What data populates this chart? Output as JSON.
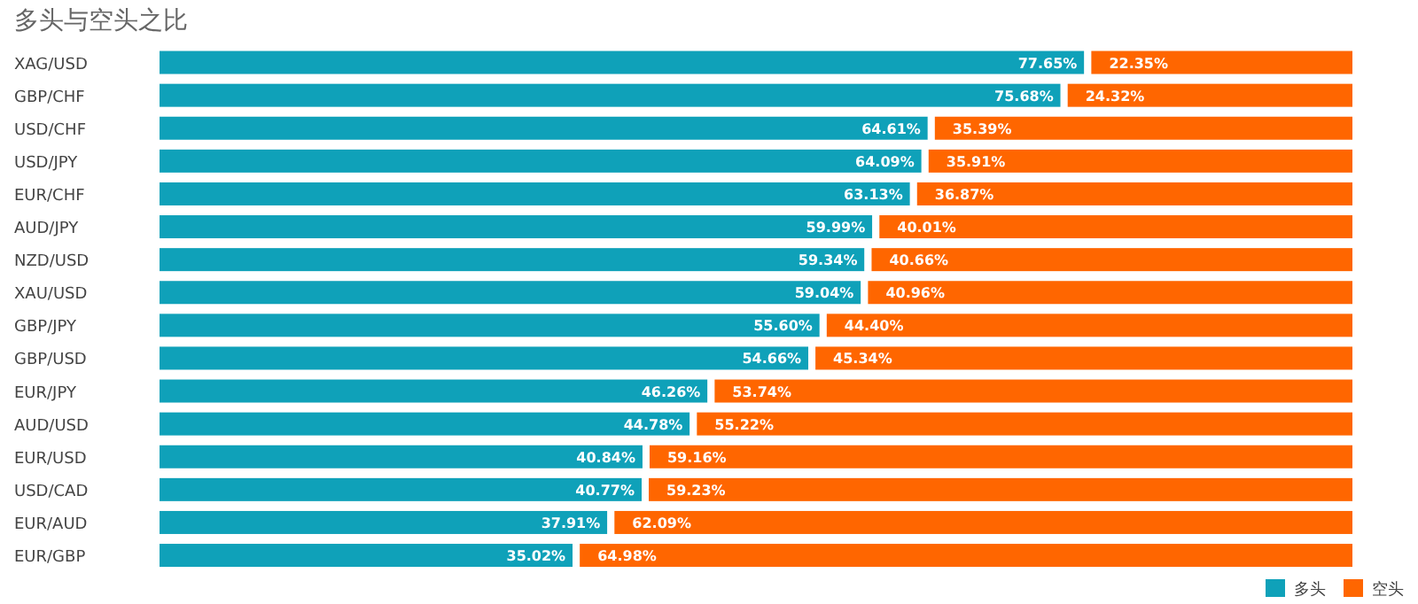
{
  "chart_data": {
    "type": "bar",
    "title": "多头与空头之比",
    "orientation": "horizontal",
    "stacked": true,
    "legend": "bottom right",
    "categories": [
      "XAG/USD",
      "GBP/CHF",
      "USD/CHF",
      "USD/JPY",
      "EUR/CHF",
      "AUD/JPY",
      "NZD/USD",
      "XAU/USD",
      "GBP/JPY",
      "GBP/USD",
      "EUR/JPY",
      "AUD/USD",
      "EUR/USD",
      "USD/CAD",
      "EUR/AUD",
      "EUR/GBP"
    ],
    "series": [
      {
        "name": "多头",
        "color": "#0fa1b9",
        "values": [
          77.65,
          75.68,
          64.61,
          64.09,
          63.13,
          59.99,
          59.34,
          59.04,
          55.6,
          54.66,
          46.26,
          44.78,
          40.84,
          40.77,
          37.91,
          35.02
        ],
        "value_labels": [
          "77.65%",
          "75.68%",
          "64.61%",
          "64.09%",
          "63.13%",
          "59.99%",
          "59.34%",
          "59.04%",
          "55.60%",
          "54.66%",
          "46.26%",
          "44.78%",
          "40.84%",
          "40.77%",
          "37.91%",
          "35.02%"
        ]
      },
      {
        "name": "空头",
        "color": "#ff6600",
        "values": [
          22.35,
          24.32,
          35.39,
          35.91,
          36.87,
          40.01,
          40.66,
          40.96,
          44.4,
          45.34,
          53.74,
          55.22,
          59.16,
          59.23,
          62.09,
          64.98
        ],
        "value_labels": [
          "22.35%",
          "24.32%",
          "35.39%",
          "35.91%",
          "36.87%",
          "40.01%",
          "40.66%",
          "40.96%",
          "44.40%",
          "45.34%",
          "53.74%",
          "55.22%",
          "59.16%",
          "59.23%",
          "62.09%",
          "64.98%"
        ]
      }
    ]
  }
}
